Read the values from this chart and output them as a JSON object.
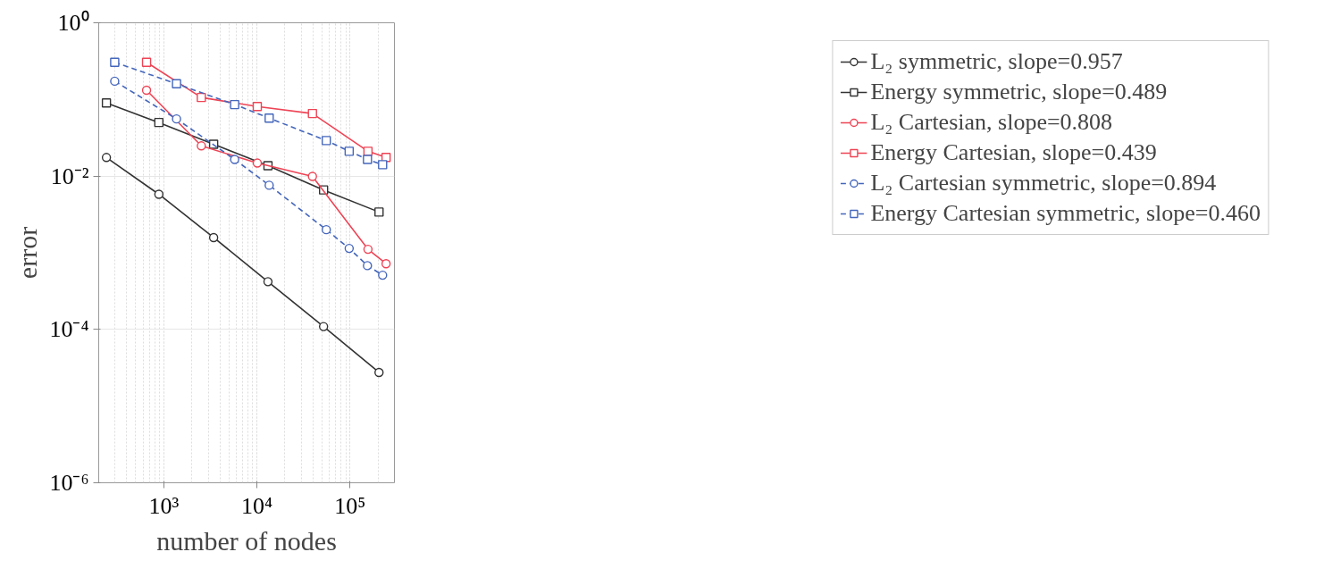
{
  "chart_data": {
    "type": "line",
    "xlabel": "number of nodes",
    "ylabel": "error",
    "log": "xy",
    "xlim": [
      200,
      300000
    ],
    "ylim": [
      1e-06,
      1
    ],
    "xticks": [
      {
        "value": 1000,
        "label": "10³"
      },
      {
        "value": 10000,
        "label": "10⁴"
      },
      {
        "value": 100000,
        "label": "10⁵"
      }
    ],
    "yticks": [
      {
        "value": 1e-06,
        "label": "10⁻⁶"
      },
      {
        "value": 0.0001,
        "label": "10⁻⁴"
      },
      {
        "value": 0.01,
        "label": "10⁻²"
      },
      {
        "value": 1,
        "label": "10⁰"
      }
    ],
    "grid": true,
    "legend": "right",
    "series": [
      {
        "name": "L₂ symmetric, slope=0.957",
        "color": "#333333",
        "marker": "circle",
        "line_style": "solid",
        "x": [
          242,
          885,
          3430,
          13150,
          52000,
          205000
        ],
        "values": [
          0.0175,
          0.0058,
          0.00158,
          0.00042,
          0.000109,
          2.75e-05
        ]
      },
      {
        "name": "Energy symmetric, slope=0.489",
        "color": "#333333",
        "marker": "square",
        "line_style": "solid",
        "x": [
          242,
          885,
          3430,
          13150,
          52000,
          205000
        ],
        "values": [
          0.09,
          0.05,
          0.026,
          0.0137,
          0.0066,
          0.0034
        ]
      },
      {
        "name": "L₂ Cartesian, slope=0.808",
        "color": "#ee4455",
        "marker": "circle",
        "line_style": "solid",
        "x": [
          653,
          2530,
          10100,
          39500,
          156000,
          244000
        ],
        "values": [
          0.132,
          0.0248,
          0.0148,
          0.0099,
          0.00111,
          0.00072
        ]
      },
      {
        "name": "Energy Cartesian, slope=0.439",
        "color": "#ee4455",
        "marker": "square",
        "line_style": "solid",
        "x": [
          653,
          2530,
          10100,
          39500,
          156000,
          244000
        ],
        "values": [
          0.305,
          0.106,
          0.081,
          0.0655,
          0.0211,
          0.0175
        ]
      },
      {
        "name": "L₂ Cartesian symmetric, slope=0.894",
        "color": "#4466bb",
        "marker": "circle",
        "line_style": "dashed",
        "x": [
          297,
          1370,
          5770,
          13550,
          55600,
          98000,
          154000,
          224000
        ],
        "values": [
          0.173,
          0.0557,
          0.0165,
          0.0076,
          0.002,
          0.00114,
          0.00068,
          0.00051
        ]
      },
      {
        "name": "Energy Cartesian symmetric, slope=0.460",
        "color": "#4466bb",
        "marker": "square",
        "line_style": "dashed",
        "x": [
          297,
          1370,
          5770,
          13550,
          55600,
          98000,
          154000,
          224000
        ],
        "values": [
          0.305,
          0.16,
          0.0857,
          0.0571,
          0.0291,
          0.0211,
          0.0165,
          0.0141
        ]
      }
    ]
  }
}
